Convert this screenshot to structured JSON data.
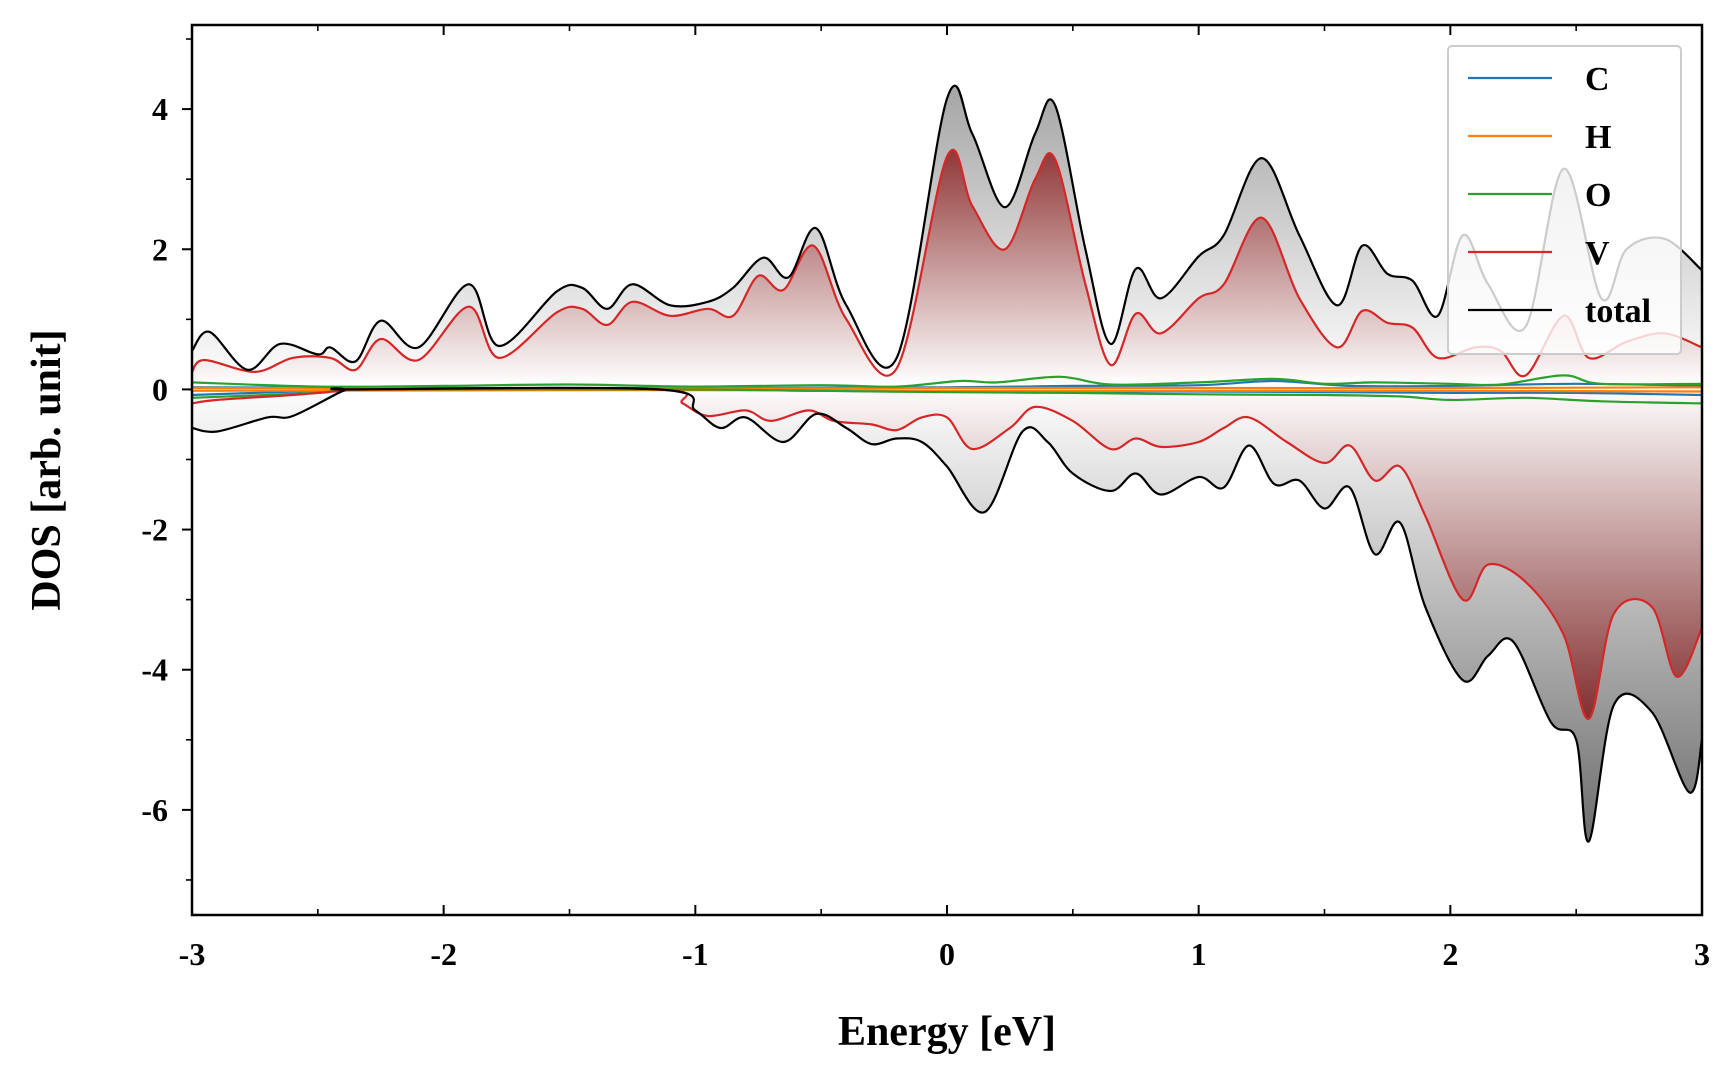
{
  "chart_data": {
    "type": "line",
    "title": "",
    "xlabel": "Energy [eV]",
    "ylabel": "DOS [arb. unit]",
    "xlim": [
      -3,
      3
    ],
    "ylim": [
      -7.5,
      5.2
    ],
    "xticks": [
      -3,
      -2,
      -1,
      0,
      1,
      2,
      3
    ],
    "xtick_labels": [
      "-3",
      "-2",
      "-1",
      "0",
      "1",
      "2",
      "3"
    ],
    "yticks": [
      -6,
      -4,
      -2,
      0,
      2,
      4
    ],
    "ytick_labels": [
      "-6",
      "-4",
      "-2",
      "0",
      "2",
      "4"
    ],
    "grid": false,
    "legend_position": "top-right",
    "fill": "gradient shading between total DOS and zero (gray) and V DOS and zero (dark red)",
    "legend": [
      "C",
      "H",
      "O",
      "V",
      "total"
    ],
    "series": [
      {
        "name": "C",
        "color": "#1f77b4",
        "up": [
          [
            -3,
            0.03
          ],
          [
            -2,
            0.02
          ],
          [
            -1,
            0.02
          ],
          [
            0,
            0.03
          ],
          [
            0.5,
            0.05
          ],
          [
            1,
            0.06
          ],
          [
            1.3,
            0.12
          ],
          [
            1.6,
            0.05
          ],
          [
            2,
            0.05
          ],
          [
            2.5,
            0.08
          ],
          [
            3,
            0.05
          ]
        ],
        "down": [
          [
            -3,
            -0.08
          ],
          [
            -2.5,
            -0.02
          ],
          [
            -2.3,
            0
          ],
          [
            -1.1,
            0
          ],
          [
            -0.5,
            -0.02
          ],
          [
            0,
            -0.03
          ],
          [
            1,
            -0.03
          ],
          [
            2,
            -0.05
          ],
          [
            2.5,
            -0.05
          ],
          [
            3,
            -0.08
          ]
        ]
      },
      {
        "name": "H",
        "color": "#ff7f0e",
        "up": [
          [
            -3,
            0.02
          ],
          [
            -1,
            0.01
          ],
          [
            0,
            0.02
          ],
          [
            1,
            0.02
          ],
          [
            2,
            0.02
          ],
          [
            3,
            0.03
          ]
        ],
        "down": [
          [
            -3,
            -0.02
          ],
          [
            -1,
            -0.01
          ],
          [
            0,
            -0.02
          ],
          [
            1,
            -0.02
          ],
          [
            2,
            -0.02
          ],
          [
            3,
            -0.03
          ]
        ]
      },
      {
        "name": "O",
        "color": "#2ca02c",
        "up": [
          [
            -3,
            0.1
          ],
          [
            -2.5,
            0.04
          ],
          [
            -2,
            0.05
          ],
          [
            -1.5,
            0.07
          ],
          [
            -1,
            0.04
          ],
          [
            -0.5,
            0.06
          ],
          [
            -0.2,
            0.04
          ],
          [
            0.05,
            0.12
          ],
          [
            0.2,
            0.1
          ],
          [
            0.45,
            0.18
          ],
          [
            0.65,
            0.07
          ],
          [
            1.0,
            0.1
          ],
          [
            1.3,
            0.15
          ],
          [
            1.5,
            0.08
          ],
          [
            1.7,
            0.1
          ],
          [
            2.0,
            0.08
          ],
          [
            2.2,
            0.07
          ],
          [
            2.45,
            0.2
          ],
          [
            2.6,
            0.08
          ],
          [
            3,
            0.08
          ]
        ],
        "down": [
          [
            -3,
            -0.12
          ],
          [
            -2.5,
            -0.05
          ],
          [
            -2.3,
            0
          ],
          [
            -1.1,
            0
          ],
          [
            -0.5,
            -0.02
          ],
          [
            0,
            -0.04
          ],
          [
            0.5,
            -0.05
          ],
          [
            1,
            -0.07
          ],
          [
            1.5,
            -0.08
          ],
          [
            1.8,
            -0.1
          ],
          [
            2,
            -0.15
          ],
          [
            2.3,
            -0.12
          ],
          [
            2.6,
            -0.17
          ],
          [
            3,
            -0.2
          ]
        ]
      },
      {
        "name": "V",
        "color": "#d62728",
        "up": [
          [
            -3,
            0.25
          ],
          [
            -2.95,
            0.42
          ],
          [
            -2.75,
            0.25
          ],
          [
            -2.6,
            0.45
          ],
          [
            -2.45,
            0.45
          ],
          [
            -2.35,
            0.28
          ],
          [
            -2.25,
            0.72
          ],
          [
            -2.1,
            0.42
          ],
          [
            -1.9,
            1.18
          ],
          [
            -1.78,
            0.45
          ],
          [
            -1.55,
            1.1
          ],
          [
            -1.45,
            1.15
          ],
          [
            -1.35,
            0.92
          ],
          [
            -1.25,
            1.25
          ],
          [
            -1.1,
            1.05
          ],
          [
            -0.95,
            1.15
          ],
          [
            -0.85,
            1.05
          ],
          [
            -0.75,
            1.62
          ],
          [
            -0.65,
            1.42
          ],
          [
            -0.53,
            2.05
          ],
          [
            -0.4,
            1.0
          ],
          [
            -0.2,
            0.3
          ],
          [
            0.0,
            3.32
          ],
          [
            0.1,
            2.62
          ],
          [
            0.23,
            2.0
          ],
          [
            0.35,
            3.0
          ],
          [
            0.43,
            3.28
          ],
          [
            0.55,
            1.5
          ],
          [
            0.65,
            0.35
          ],
          [
            0.75,
            1.08
          ],
          [
            0.85,
            0.8
          ],
          [
            1.0,
            1.3
          ],
          [
            1.1,
            1.5
          ],
          [
            1.25,
            2.45
          ],
          [
            1.4,
            1.3
          ],
          [
            1.55,
            0.6
          ],
          [
            1.65,
            1.12
          ],
          [
            1.75,
            0.95
          ],
          [
            1.85,
            0.88
          ],
          [
            1.95,
            0.45
          ],
          [
            2.1,
            0.6
          ],
          [
            2.2,
            0.55
          ],
          [
            2.3,
            0.2
          ],
          [
            2.45,
            1.05
          ],
          [
            2.55,
            0.45
          ],
          [
            2.7,
            0.68
          ],
          [
            2.85,
            0.8
          ],
          [
            3,
            0.6
          ]
        ],
        "down": [
          [
            -3,
            -0.2
          ],
          [
            -2.9,
            -0.15
          ],
          [
            -2.6,
            -0.08
          ],
          [
            -2.4,
            -0.02
          ],
          [
            -2.3,
            0
          ],
          [
            -1.15,
            0
          ],
          [
            -1.05,
            -0.2
          ],
          [
            -0.95,
            -0.38
          ],
          [
            -0.8,
            -0.3
          ],
          [
            -0.7,
            -0.45
          ],
          [
            -0.55,
            -0.3
          ],
          [
            -0.45,
            -0.45
          ],
          [
            -0.3,
            -0.5
          ],
          [
            -0.2,
            -0.58
          ],
          [
            -0.1,
            -0.4
          ],
          [
            0.0,
            -0.4
          ],
          [
            0.1,
            -0.85
          ],
          [
            0.25,
            -0.55
          ],
          [
            0.35,
            -0.25
          ],
          [
            0.5,
            -0.45
          ],
          [
            0.65,
            -0.85
          ],
          [
            0.75,
            -0.7
          ],
          [
            0.85,
            -0.82
          ],
          [
            1.0,
            -0.75
          ],
          [
            1.1,
            -0.55
          ],
          [
            1.2,
            -0.4
          ],
          [
            1.35,
            -0.75
          ],
          [
            1.5,
            -1.05
          ],
          [
            1.6,
            -0.8
          ],
          [
            1.7,
            -1.3
          ],
          [
            1.8,
            -1.1
          ],
          [
            1.9,
            -1.8
          ],
          [
            2.05,
            -3.0
          ],
          [
            2.15,
            -2.5
          ],
          [
            2.3,
            -2.75
          ],
          [
            2.45,
            -3.5
          ],
          [
            2.55,
            -4.7
          ],
          [
            2.65,
            -3.2
          ],
          [
            2.8,
            -3.1
          ],
          [
            2.9,
            -4.1
          ],
          [
            3,
            -3.4
          ]
        ]
      },
      {
        "name": "total",
        "color": "#000000",
        "up": [
          [
            -3,
            0.55
          ],
          [
            -2.93,
            0.82
          ],
          [
            -2.78,
            0.28
          ],
          [
            -2.65,
            0.65
          ],
          [
            -2.5,
            0.5
          ],
          [
            -2.45,
            0.6
          ],
          [
            -2.35,
            0.4
          ],
          [
            -2.25,
            0.98
          ],
          [
            -2.1,
            0.6
          ],
          [
            -1.9,
            1.5
          ],
          [
            -1.78,
            0.62
          ],
          [
            -1.55,
            1.4
          ],
          [
            -1.45,
            1.45
          ],
          [
            -1.35,
            1.15
          ],
          [
            -1.25,
            1.5
          ],
          [
            -1.1,
            1.2
          ],
          [
            -0.95,
            1.25
          ],
          [
            -0.85,
            1.45
          ],
          [
            -0.73,
            1.88
          ],
          [
            -0.63,
            1.6
          ],
          [
            -0.52,
            2.3
          ],
          [
            -0.4,
            1.2
          ],
          [
            -0.2,
            0.45
          ],
          [
            0.0,
            4.15
          ],
          [
            0.1,
            3.65
          ],
          [
            0.23,
            2.6
          ],
          [
            0.35,
            3.65
          ],
          [
            0.43,
            4.05
          ],
          [
            0.55,
            2.0
          ],
          [
            0.65,
            0.65
          ],
          [
            0.75,
            1.72
          ],
          [
            0.85,
            1.3
          ],
          [
            1.0,
            1.9
          ],
          [
            1.1,
            2.2
          ],
          [
            1.25,
            3.3
          ],
          [
            1.4,
            2.2
          ],
          [
            1.55,
            1.2
          ],
          [
            1.65,
            2.05
          ],
          [
            1.75,
            1.65
          ],
          [
            1.85,
            1.55
          ],
          [
            1.95,
            1.05
          ],
          [
            2.05,
            2.2
          ],
          [
            2.15,
            1.5
          ],
          [
            2.3,
            0.9
          ],
          [
            2.45,
            3.15
          ],
          [
            2.6,
            1.3
          ],
          [
            2.7,
            2.0
          ],
          [
            2.85,
            2.15
          ],
          [
            3,
            1.7
          ]
        ],
        "down": [
          [
            -3,
            -0.55
          ],
          [
            -2.9,
            -0.6
          ],
          [
            -2.7,
            -0.4
          ],
          [
            -2.6,
            -0.38
          ],
          [
            -2.4,
            -0.02
          ],
          [
            -2.35,
            0
          ],
          [
            -1.15,
            0
          ],
          [
            -1.0,
            -0.3
          ],
          [
            -0.9,
            -0.55
          ],
          [
            -0.8,
            -0.4
          ],
          [
            -0.65,
            -0.75
          ],
          [
            -0.52,
            -0.35
          ],
          [
            -0.4,
            -0.55
          ],
          [
            -0.3,
            -0.78
          ],
          [
            -0.2,
            -0.7
          ],
          [
            -0.1,
            -0.75
          ],
          [
            0.0,
            -1.1
          ],
          [
            0.15,
            -1.75
          ],
          [
            0.3,
            -0.6
          ],
          [
            0.4,
            -0.75
          ],
          [
            0.5,
            -1.2
          ],
          [
            0.65,
            -1.45
          ],
          [
            0.75,
            -1.2
          ],
          [
            0.85,
            -1.5
          ],
          [
            1.0,
            -1.25
          ],
          [
            1.1,
            -1.4
          ],
          [
            1.2,
            -0.8
          ],
          [
            1.3,
            -1.35
          ],
          [
            1.4,
            -1.3
          ],
          [
            1.5,
            -1.7
          ],
          [
            1.6,
            -1.4
          ],
          [
            1.7,
            -2.35
          ],
          [
            1.8,
            -1.9
          ],
          [
            1.9,
            -3.1
          ],
          [
            2.05,
            -4.15
          ],
          [
            2.15,
            -3.8
          ],
          [
            2.25,
            -3.6
          ],
          [
            2.4,
            -4.75
          ],
          [
            2.5,
            -5.0
          ],
          [
            2.55,
            -6.45
          ],
          [
            2.65,
            -4.5
          ],
          [
            2.8,
            -4.6
          ],
          [
            2.95,
            -5.75
          ],
          [
            3,
            -5.0
          ]
        ]
      }
    ]
  }
}
